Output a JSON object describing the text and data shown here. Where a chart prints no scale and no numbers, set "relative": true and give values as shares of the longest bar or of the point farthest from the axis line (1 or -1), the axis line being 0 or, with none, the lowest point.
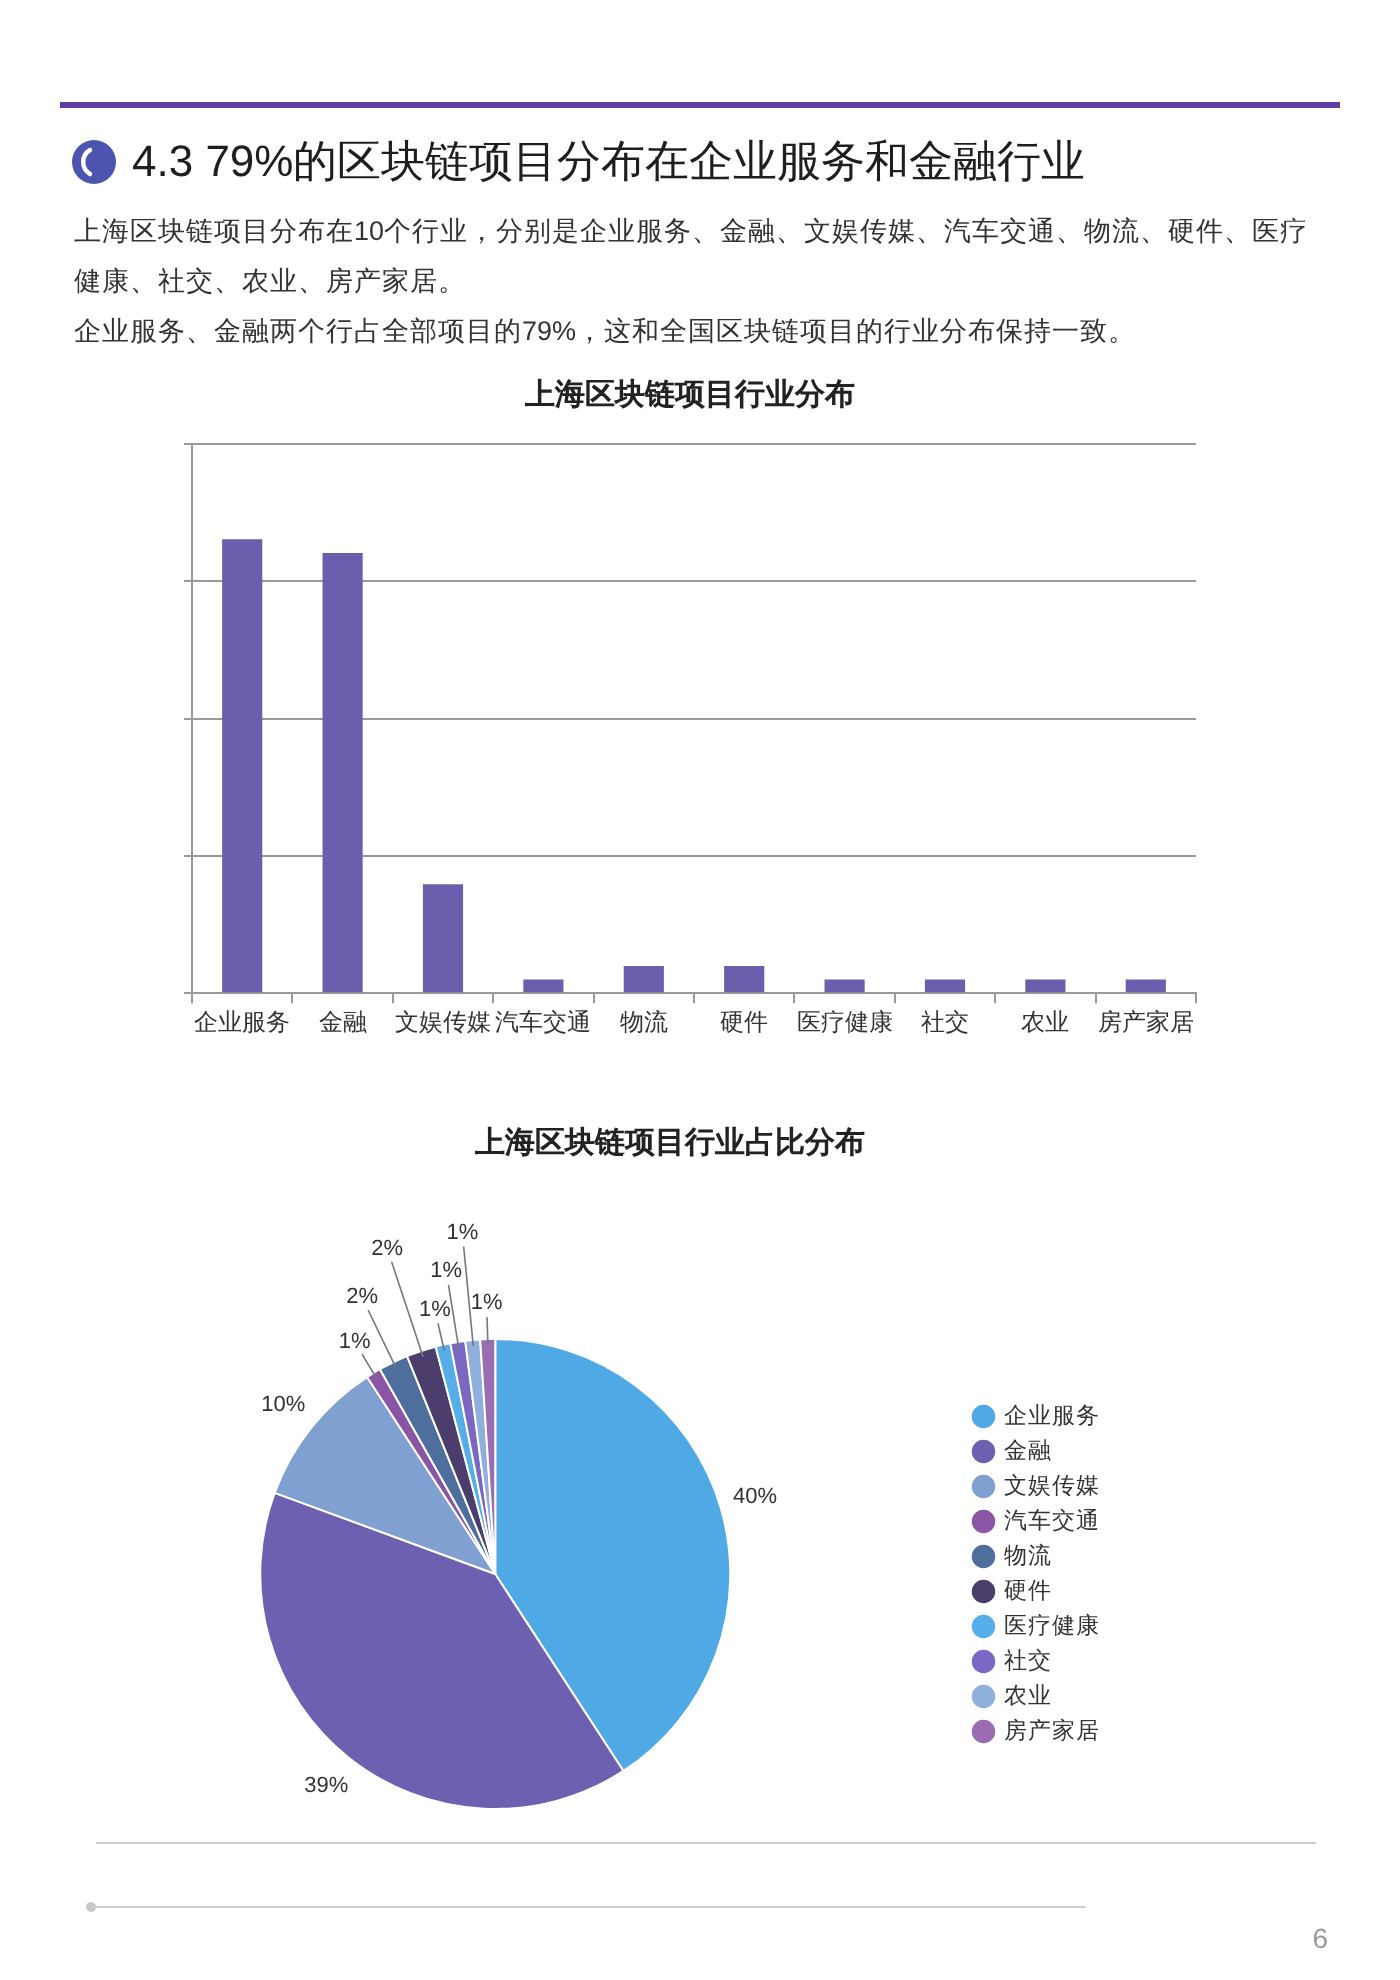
{
  "chart_data": [
    {
      "type": "bar",
      "title": "上海区块链项目行业分布",
      "categories": [
        "企业服务",
        "金融",
        "文娱传媒",
        "汽车交通",
        "物流",
        "硬件",
        "医疗健康",
        "社交",
        "农业",
        "房产家居"
      ],
      "values": [
        1,
        0.97,
        0.24,
        0.03,
        0.06,
        0.06,
        0.03,
        0.03,
        0.03,
        0.03
      ],
      "color": "#6a5fac",
      "relative": true,
      "grid": "y",
      "annotations": [
        "4.3 79%的区块链项目分布在企业服务和金融行业",
        "上海区块链项目分布在10个行业，分别是企业服务、金融、文娱传媒、汽车交通、物流、硬件、医疗健康、社交、农业、房产家居。",
        "企业服务、金融两个行占全部项目的79%，这和全国区块链项目的行业分布保持一致。"
      ]
    },
    {
      "type": "pie",
      "title": "上海区块链项目行业占比分布",
      "categories": [
        "企业服务",
        "金融",
        "文娱传媒",
        "汽车交通",
        "物流",
        "硬件",
        "医疗健康",
        "社交",
        "农业",
        "房产家居"
      ],
      "values": [
        40,
        39,
        10,
        1,
        2,
        2,
        1,
        1,
        1,
        1
      ],
      "colors": [
        "#4ea9e4",
        "#6d60b0",
        "#7fa0d0",
        "#8b55a6",
        "#4e6e9e",
        "#4b3e6c",
        "#55aeea",
        "#7b68c4",
        "#8fb0dc",
        "#9a6db3"
      ],
      "value_labels": [
        "40%",
        "39%",
        "10%",
        "1%",
        "2%",
        "2%",
        "1%",
        "1%",
        "1%",
        "1%"
      ],
      "legend": "right",
      "annotations": [
        "6"
      ]
    }
  ]
}
